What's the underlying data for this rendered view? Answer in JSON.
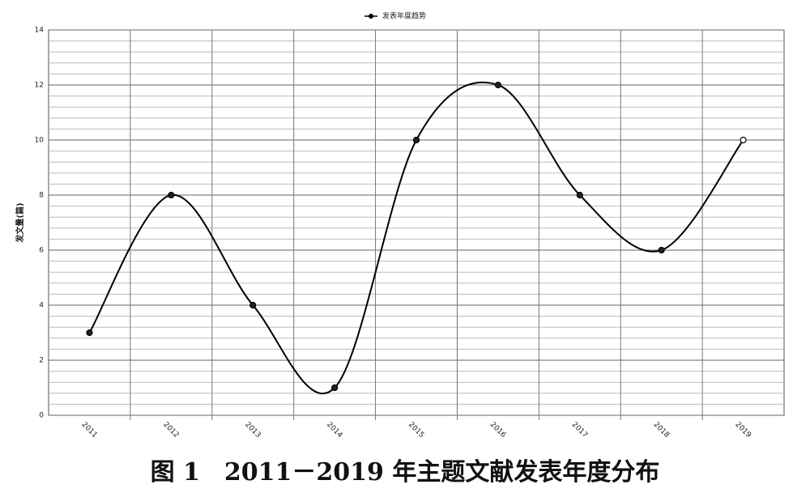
{
  "chart_data": {
    "type": "line",
    "title": "图 1　2011－2019 年主题文献发表年度分布",
    "y_label": "发文量(篇)",
    "categories": [
      "2011",
      "2012",
      "2013",
      "2014",
      "2015",
      "2016",
      "2017",
      "2018",
      "2019"
    ],
    "series": [
      {
        "name": "发表年度趋势",
        "color": "#000000",
        "values": [
          3,
          8,
          4,
          1,
          10,
          12,
          8,
          6,
          10
        ],
        "marker_colors": [
          "#222222",
          "#222222",
          "#222222",
          "#222222",
          "#222222",
          "#222222",
          "#222222",
          "#222222",
          "#ffffff"
        ]
      }
    ],
    "ylim": [
      0,
      14
    ],
    "yticks": [
      0,
      2,
      4,
      6,
      8,
      10,
      12,
      14
    ],
    "grid": true,
    "legend": "top",
    "smooth": true
  }
}
